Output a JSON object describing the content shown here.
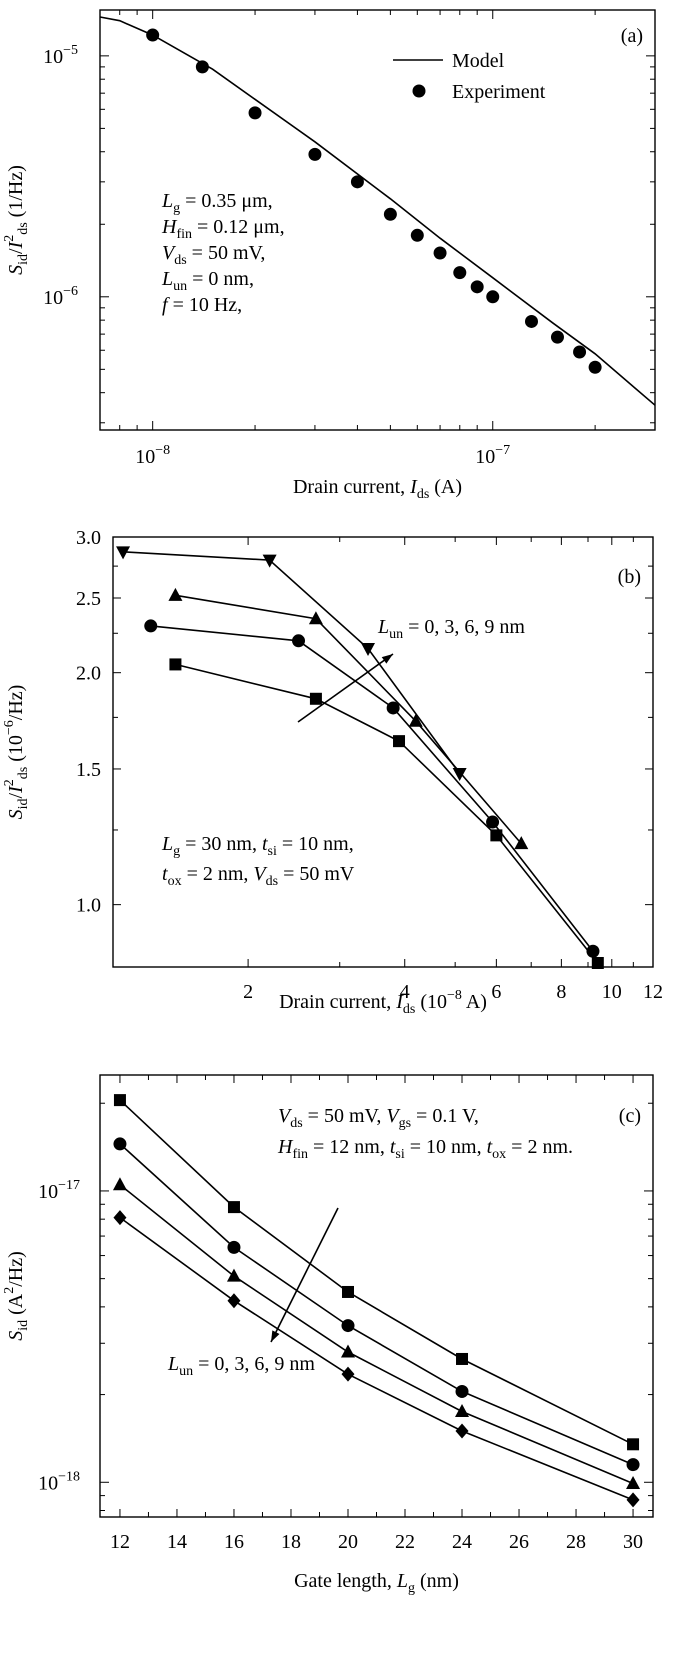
{
  "chart_data": [
    {
      "id": "a",
      "type": "line",
      "panel_label": "(a)",
      "xscale": "log",
      "yscale": "log",
      "xlim": [
        7e-09,
        3e-07
      ],
      "ylim": [
        2.8e-07,
        1.55e-05
      ],
      "x_major": [
        {
          "value": 1e-08,
          "base": "10",
          "exp": "−8"
        },
        {
          "value": 1e-07,
          "base": "10",
          "exp": "−7"
        }
      ],
      "y_major": [
        {
          "value": 1e-06,
          "base": "10",
          "exp": "−6"
        },
        {
          "value": 1e-05,
          "base": "10",
          "exp": "−5"
        }
      ],
      "xlabel": {
        "main": "Drain current, ",
        "var": "I",
        "sub": "ds",
        "unit": " (A)"
      },
      "ylabel": {
        "main": "S",
        "sub1": "id",
        "mid": "/I",
        "sup": "2",
        "sub2": "ds",
        "unit": " (1/Hz)"
      },
      "legend": {
        "line_label": "Model",
        "marker_label": "Experiment",
        "position": "top-right"
      },
      "annotation": [
        {
          "var": "L",
          "sub": "g",
          "rest": " = 0.35 μm,"
        },
        {
          "var": "H",
          "sub": "fin",
          "rest": " = 0.12 μm,"
        },
        {
          "var": "V",
          "sub": "ds",
          "rest": " = 50 mV,"
        },
        {
          "var": "L",
          "sub": "un",
          "rest": " = 0 nm,"
        },
        {
          "var": "f",
          "sub": "",
          "rest": " = 10 Hz,"
        }
      ],
      "series": [
        {
          "name": "Model",
          "style": "line",
          "x": [
            7e-09,
            8e-09,
            1e-08,
            1.5e-08,
            2e-08,
            3e-08,
            5e-08,
            7e-08,
            1e-07,
            1.5e-07,
            2e-07,
            3e-07
          ],
          "y": [
            1.45e-05,
            1.4e-05,
            1.22e-05,
            8.8e-06,
            6.6e-06,
            4.4e-06,
            2.55e-06,
            1.75e-06,
            1.2e-06,
            7.8e-07,
            5.8e-07,
            3.55e-07
          ]
        },
        {
          "name": "Experiment",
          "style": "marker",
          "marker": "circle",
          "x": [
            1e-08,
            1.4e-08,
            2e-08,
            3e-08,
            4e-08,
            5e-08,
            6e-08,
            7e-08,
            8e-08,
            9e-08,
            1e-07,
            1.3e-07,
            1.55e-07,
            1.8e-07,
            2e-07
          ],
          "y": [
            1.22e-05,
            9e-06,
            5.8e-06,
            3.9e-06,
            3e-06,
            2.2e-06,
            1.8e-06,
            1.52e-06,
            1.26e-06,
            1.1e-06,
            1e-06,
            7.9e-07,
            6.8e-07,
            5.9e-07,
            5.1e-07
          ]
        }
      ]
    },
    {
      "id": "b",
      "type": "line",
      "panel_label": "(b)",
      "xscale": "log",
      "yscale": "log",
      "xlim": [
        1.1,
        12
      ],
      "ylim": [
        0.83,
        3.0
      ],
      "x_ticks": [
        2,
        4,
        6,
        8,
        10,
        12
      ],
      "y_ticks": [
        1.0,
        1.5,
        2.0,
        2.5,
        3.0
      ],
      "y_tick_labels": [
        "1.0",
        "1.5",
        "2.0",
        "2.5",
        "3.0"
      ],
      "xlabel": {
        "main": "Drain current, ",
        "var": "I",
        "sub": "ds",
        "unit": " (10",
        "unit_sup": "−8",
        "unit_end": " A)"
      },
      "ylabel": {
        "main": "S",
        "sub1": "id",
        "mid": "/I",
        "sup": "2",
        "sub2": "ds",
        "unit": " (10",
        "unit_sup": "−6",
        "unit_end": "/Hz)"
      },
      "arrow_label": {
        "var": "L",
        "sub": "un",
        "rest": " = 0, 3, 6, 9 nm"
      },
      "annotation": [
        {
          "parts": [
            {
              "var": "L",
              "sub": "g",
              "rest": " = 30 nm, "
            },
            {
              "var": "t",
              "sub": "si",
              "rest": " = 10 nm,"
            }
          ]
        },
        {
          "parts": [
            {
              "var": "t",
              "sub": "ox",
              "rest": " = 2 nm, "
            },
            {
              "var": "V",
              "sub": "ds",
              "rest": " = 50 mV"
            }
          ]
        }
      ],
      "series": [
        {
          "marker": "square",
          "x": [
            1.45,
            2.7,
            3.9,
            6.0,
            9.4
          ],
          "y": [
            2.05,
            1.85,
            1.63,
            1.23,
            0.84
          ]
        },
        {
          "marker": "circle",
          "x": [
            1.3,
            2.5,
            3.8,
            5.9,
            9.2
          ],
          "y": [
            2.3,
            2.2,
            1.8,
            1.28,
            0.87
          ]
        },
        {
          "marker": "triangle-up",
          "x": [
            1.45,
            2.7,
            4.2,
            6.7
          ],
          "y": [
            2.52,
            2.35,
            1.73,
            1.2
          ]
        },
        {
          "marker": "triangle-down",
          "x": [
            1.15,
            2.2,
            3.4,
            5.1
          ],
          "y": [
            2.87,
            2.8,
            2.15,
            1.48
          ]
        }
      ]
    },
    {
      "id": "c",
      "type": "line",
      "panel_label": "(c)",
      "xscale": "linear",
      "yscale": "log",
      "xlim": [
        11.3,
        30.7
      ],
      "ylim": [
        7.6e-19,
        2.5e-17
      ],
      "x_ticks": [
        12,
        14,
        16,
        18,
        20,
        22,
        24,
        26,
        28,
        30
      ],
      "y_major": [
        {
          "value": 1e-18,
          "base": "10",
          "exp": "−18"
        },
        {
          "value": 1e-17,
          "base": "10",
          "exp": "−17"
        }
      ],
      "xlabel": {
        "main": "Gate length, ",
        "var": "L",
        "sub": "g",
        "unit": " (nm)"
      },
      "ylabel": {
        "main": "S",
        "sub1": "id",
        "unit": " (A",
        "unit_sup": "2",
        "unit_end": "/Hz)"
      },
      "arrow_label": {
        "var": "L",
        "sub": "un",
        "rest": " = 0, 3, 6, 9 nm"
      },
      "annotation": [
        {
          "parts": [
            {
              "var": "V",
              "sub": "ds",
              "rest": " = 50 mV, "
            },
            {
              "var": "V",
              "sub": "gs",
              "rest": " = 0.1 V,"
            }
          ]
        },
        {
          "parts": [
            {
              "var": "H",
              "sub": "fin",
              "rest": " = 12 nm, "
            },
            {
              "var": "t",
              "sub": "si",
              "rest": " = 10 nm, "
            },
            {
              "var": "t",
              "sub": "ox",
              "rest": " = 2 nm."
            }
          ]
        }
      ],
      "series": [
        {
          "marker": "square",
          "x": [
            12,
            16,
            20,
            24,
            30
          ],
          "y": [
            2.05e-17,
            8.8e-18,
            4.5e-18,
            2.65e-18,
            1.35e-18
          ]
        },
        {
          "marker": "circle",
          "x": [
            12,
            16,
            20,
            24,
            30
          ],
          "y": [
            1.45e-17,
            6.4e-18,
            3.45e-18,
            2.05e-18,
            1.15e-18
          ]
        },
        {
          "marker": "triangle-up",
          "x": [
            12,
            16,
            20,
            24,
            30
          ],
          "y": [
            1.05e-17,
            5.1e-18,
            2.8e-18,
            1.75e-18,
            9.9e-19
          ]
        },
        {
          "marker": "diamond",
          "x": [
            12,
            16,
            20,
            24,
            30
          ],
          "y": [
            8.1e-18,
            4.2e-18,
            2.35e-18,
            1.5e-18,
            8.7e-19
          ]
        }
      ]
    }
  ]
}
